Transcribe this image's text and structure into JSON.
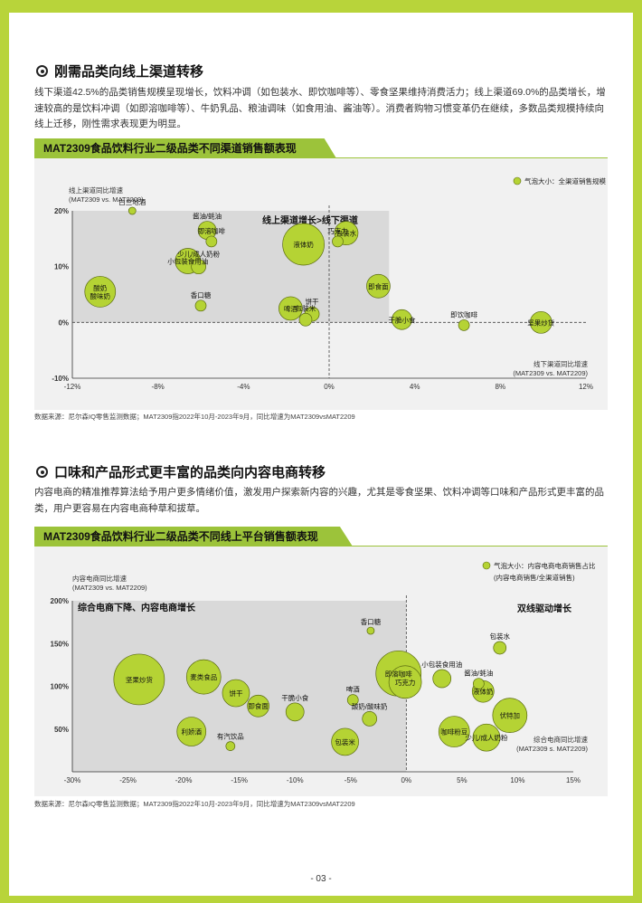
{
  "section1": {
    "title": "刚需品类向线上渠道转移",
    "paragraph": "线下渠道42.5%的品类销售规模呈现增长，饮料冲调（如包装水、即饮咖啡等）、零食坚果维持消费活力；线上渠道69.0%的品类增长，增速较高的是饮料冲调（如即溶咖啡等）、牛奶乳品、粮油调味（如食用油、酱油等）。消费者购物习惯变革仍在继续，多数品类规模持续向线上迁移，刚性需求表现更为明显。",
    "chart_banner": "MAT2309食品饮料行业二级品类不同渠道销售额表现",
    "source": "数据来源：尼尔森IQ零售监测数据；MAT2309指2022年10月-2023年9月，同比增速为MAT2309vsMAT2209"
  },
  "section2": {
    "title": "口味和产品形式更丰富的品类向内容电商转移",
    "paragraph": "内容电商的精准推荐算法给予用户更多情绪价值，激发用户探索新内容的兴趣，尤其是零食坚果、饮料冲调等口味和产品形式更丰富的品类，用户更容易在内容电商种草和拔草。",
    "chart_banner": "MAT2309食品饮料行业二级品类不同线上平台销售额表现",
    "source": "数据来源：尼尔森IQ零售监测数据；MAT2309指2022年10月-2023年9月，同比增速为MAT2309vsMAT2209"
  },
  "page_number": "- 03 -",
  "colors": {
    "accent": "#b8d43a",
    "bubble": "#b5d334",
    "bubble_stroke": "#5a6b10",
    "banner": "#9cc33a",
    "panel": "#f1f1f1",
    "highlight": "#d9d9d9"
  },
  "chart_data": [
    {
      "type": "scatter",
      "title": "MAT2309食品饮料行业二级品类不同渠道销售额表现",
      "xlabel": "线下渠道同比增速\n(MAT2309 vs. MAT2209)",
      "ylabel": "线上渠道同比增速\n(MAT2309 vs. MAT2209)",
      "legend": "气泡大小：全渠道销售规模",
      "quadrant_label": "线上渠道增长>线下渠道",
      "xlim": [
        -12,
        12
      ],
      "ylim": [
        -10,
        20
      ],
      "x_ticks": [
        "-12%",
        "-8%",
        "-4%",
        "0%",
        "4%",
        "8%",
        "12%"
      ],
      "y_ticks": [
        "-10%",
        "0%",
        "10%",
        "20%"
      ],
      "points": [
        {
          "label": "白兰地酒",
          "x": -9.2,
          "y": 20.0,
          "r": 4
        },
        {
          "label": "酱油/蚝油",
          "x": -5.7,
          "y": 16.5,
          "r": 10
        },
        {
          "label": "即溶咖啡",
          "x": -5.5,
          "y": 14.5,
          "r": 6
        },
        {
          "label": "小包装食用油",
          "x": -6.6,
          "y": 11.0,
          "r": 14
        },
        {
          "label": "少儿/成人奶粉",
          "x": -6.1,
          "y": 10.0,
          "r": 8
        },
        {
          "label": "酸奶\n酸味奶",
          "x": -10.7,
          "y": 5.5,
          "r": 17
        },
        {
          "label": "香口糖",
          "x": -6.0,
          "y": 3.0,
          "r": 6
        },
        {
          "label": "液体奶",
          "x": -1.2,
          "y": 14.0,
          "r": 23
        },
        {
          "label": "包装水",
          "x": 0.8,
          "y": 16.0,
          "r": 13
        },
        {
          "label": "巧克力",
          "x": 0.4,
          "y": 14.5,
          "r": 6
        },
        {
          "label": "即食面",
          "x": 2.3,
          "y": 6.5,
          "r": 13
        },
        {
          "label": "啤酒",
          "x": -1.8,
          "y": 2.5,
          "r": 13
        },
        {
          "label": "饼干",
          "x": -0.8,
          "y": 1.5,
          "r": 8
        },
        {
          "label": "包装米",
          "x": -1.1,
          "y": 0.5,
          "r": 7
        },
        {
          "label": "干脆小食",
          "x": 3.4,
          "y": 0.5,
          "r": 11
        },
        {
          "label": "即饮咖啡",
          "x": 6.3,
          "y": -0.5,
          "r": 6
        },
        {
          "label": "坚果炒货",
          "x": 9.9,
          "y": 0.0,
          "r": 12
        }
      ]
    },
    {
      "type": "scatter",
      "title": "MAT2309食品饮料行业二级品类不同线上平台销售额表现",
      "xlabel": "综合电商同比增速\n(MAT2309 s. MAT2209)",
      "ylabel": "内容电商同比增速\n(MAT2309 vs. MAT2209)",
      "legend": "气泡大小：内容电商电商销售占比\n(内容电商销售/全渠道销售)",
      "quadrant_label": "综合电商下降、内容电商增长",
      "quadrant_label_right": "双线驱动增长",
      "xlim": [
        -30,
        15
      ],
      "ylim": [
        0,
        200
      ],
      "x_ticks": [
        "-30%",
        "-25%",
        "-20%",
        "-15%",
        "-10%",
        "-5%",
        "0%",
        "5%",
        "10%",
        "15%"
      ],
      "y_ticks": [
        "50%",
        "100%",
        "150%",
        "200%"
      ],
      "points": [
        {
          "label": "坚果炒货",
          "x": -24.0,
          "y": 108.0,
          "r": 28
        },
        {
          "label": "麦类食品",
          "x": -18.2,
          "y": 111.0,
          "r": 19
        },
        {
          "label": "饼干",
          "x": -15.3,
          "y": 92.0,
          "r": 15
        },
        {
          "label": "即食面",
          "x": -13.3,
          "y": 77.0,
          "r": 12
        },
        {
          "label": "干脆小食",
          "x": -10.0,
          "y": 70.0,
          "r": 10
        },
        {
          "label": "利娇酒",
          "x": -19.3,
          "y": 47.0,
          "r": 16
        },
        {
          "label": "有汽饮品",
          "x": -15.8,
          "y": 30.0,
          "r": 5
        },
        {
          "label": "香口糖",
          "x": -3.2,
          "y": 165.0,
          "r": 4
        },
        {
          "label": "啤酒",
          "x": -4.8,
          "y": 84.0,
          "r": 6
        },
        {
          "label": "酸奶/酸味奶",
          "x": -3.3,
          "y": 62.0,
          "r": 8
        },
        {
          "label": "包装米",
          "x": -5.5,
          "y": 35.0,
          "r": 15
        },
        {
          "label": "即溶咖啡",
          "x": -0.7,
          "y": 115.0,
          "r": 25
        },
        {
          "label": "巧克力",
          "x": -0.1,
          "y": 105.0,
          "r": 18
        },
        {
          "label": "小包装食用油",
          "x": 3.2,
          "y": 109.0,
          "r": 10
        },
        {
          "label": "包装水",
          "x": 8.4,
          "y": 145.0,
          "r": 7
        },
        {
          "label": "酱油/蚝油",
          "x": 6.5,
          "y": 103.0,
          "r": 6
        },
        {
          "label": "液体奶",
          "x": 6.9,
          "y": 94.0,
          "r": 12
        },
        {
          "label": "伏特加",
          "x": 9.3,
          "y": 66.0,
          "r": 19
        },
        {
          "label": "咖啡粉豆",
          "x": 4.3,
          "y": 47.0,
          "r": 17
        },
        {
          "label": "少儿/成人奶粉",
          "x": 7.2,
          "y": 40.0,
          "r": 15
        }
      ]
    }
  ]
}
